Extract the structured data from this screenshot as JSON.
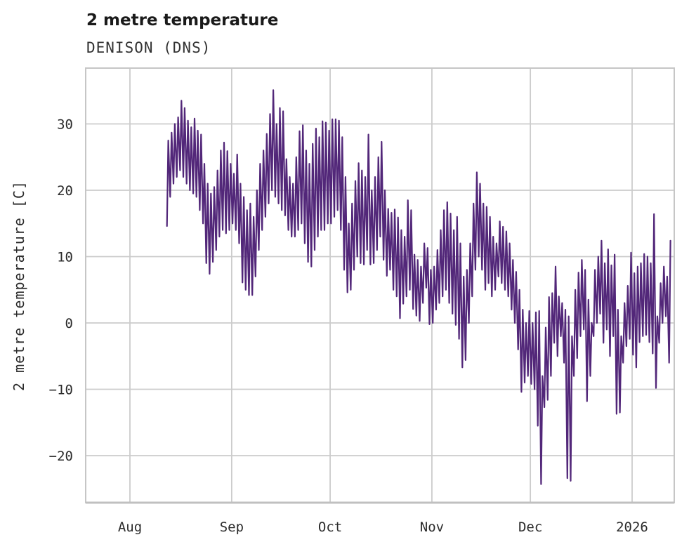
{
  "header": {
    "title": "2 metre temperature",
    "subtitle": "DENISON (DNS)"
  },
  "chart_data": {
    "type": "line",
    "title": "2 metre temperature",
    "subtitle": "DENISON (DNS)",
    "xlabel": "",
    "ylabel": "2 metre temperature [C]",
    "ylim": [
      -27.2,
      38.4
    ],
    "grid": true,
    "legend": "none",
    "line_color": "#522779",
    "grid_color": "#cccccc",
    "background": "#ffffff",
    "y_ticks": [
      {
        "label": "30",
        "value": 30
      },
      {
        "label": "20",
        "value": 20
      },
      {
        "label": "10",
        "value": 10
      },
      {
        "label": "0",
        "value": 0
      },
      {
        "label": "−10",
        "value": -10
      },
      {
        "label": "−20",
        "value": -20
      }
    ],
    "x_ticks": [
      {
        "label": "Aug",
        "day_offset": 0
      },
      {
        "label": "Sep",
        "day_offset": 31
      },
      {
        "label": "Oct",
        "day_offset": 61
      },
      {
        "label": "Nov",
        "day_offset": 92
      },
      {
        "label": "Dec",
        "day_offset": 122
      },
      {
        "label": "2026",
        "day_offset": 153
      }
    ],
    "series": {
      "name": "2 metre temperature at DENISON (DNS)",
      "units": "C",
      "note": "hourly trace read off the plot as a daily min/max envelope; day_offset 0 = Aug 1, data runs Aug 12 to Jan 12",
      "start_day_offset": 11,
      "daily_min": [
        14.6,
        19,
        21,
        22,
        23,
        22,
        21,
        20,
        19.5,
        19,
        17,
        15,
        9,
        7.4,
        9.2,
        11,
        13,
        14,
        13.5,
        14,
        15,
        14,
        12,
        6.1,
        5,
        4.2,
        4.2,
        7,
        11,
        14,
        16,
        18,
        20,
        19,
        18,
        17,
        16.2,
        14,
        13,
        13,
        14,
        15,
        12,
        9.2,
        8.5,
        11,
        13,
        14,
        14,
        15,
        15,
        16,
        17,
        14,
        8,
        4.6,
        5,
        8,
        10,
        9,
        8.8,
        11,
        8.8,
        9,
        11,
        13,
        9.5,
        7.1,
        8,
        5,
        4,
        0.7,
        2.9,
        4,
        5,
        2.1,
        1.1,
        0.3,
        3,
        5.3,
        -0.2,
        0,
        2,
        3,
        4,
        5,
        3,
        1.4,
        -0.3,
        -2.4,
        -6.7,
        -5.6,
        0,
        4,
        8,
        10,
        8,
        5,
        6,
        4,
        5,
        7,
        6,
        5,
        4,
        2,
        0,
        -4,
        -10.4,
        -9,
        -8,
        -9.2,
        -10,
        -15.5,
        -24.3,
        -12.7,
        -11.6,
        -8,
        -3,
        -5,
        -2,
        -6,
        -23.4,
        -23.8,
        -8,
        -5.3,
        -2,
        -1,
        -11.8,
        -8,
        -2,
        0,
        1.4,
        -3,
        -1,
        -5,
        -2,
        -13.7,
        -13.5,
        -6,
        -3.5,
        -2.4,
        -4.8,
        -6.7,
        -2.9,
        -2,
        -1.8,
        -2.9,
        -4.6,
        -9.8,
        -3,
        0,
        1,
        -6
      ],
      "daily_max": [
        27.5,
        28.7,
        30,
        31,
        33.5,
        32.4,
        30.5,
        29.5,
        30.8,
        29,
        28.4,
        24,
        21,
        19.5,
        20.5,
        23,
        26,
        27.2,
        25.9,
        24,
        22.5,
        25.4,
        21,
        19,
        17,
        18,
        16,
        20,
        24,
        26,
        28.5,
        31.5,
        35.1,
        30,
        32.4,
        31.9,
        24.7,
        22,
        21,
        25,
        28.9,
        29.8,
        26,
        24,
        27,
        29.3,
        28,
        30.4,
        30.2,
        29,
        30.7,
        30.7,
        30.5,
        28,
        22,
        15,
        18,
        21.4,
        24.1,
        23,
        22,
        28.4,
        20,
        22,
        25,
        27.3,
        20,
        17.2,
        16.6,
        17.1,
        15.9,
        14,
        13,
        18.5,
        17,
        10.3,
        9.5,
        8.5,
        12,
        11.3,
        8,
        8.5,
        11,
        14,
        17,
        18.2,
        16.5,
        14,
        16,
        12,
        7,
        8,
        12,
        18,
        22.7,
        21,
        18,
        17.5,
        16,
        13,
        12,
        15.3,
        14.5,
        13.8,
        12,
        9.5,
        7.7,
        5,
        2,
        0,
        1.8,
        0,
        1.6,
        1.8,
        -8,
        -0.7,
        3.9,
        4.5,
        8.5,
        4,
        3,
        2,
        1,
        -2,
        5,
        7.6,
        9.5,
        8,
        3.5,
        0,
        8,
        10,
        12.4,
        9,
        11.1,
        8.7,
        10.3,
        2,
        -2,
        3,
        5.6,
        10.6,
        7.5,
        8.5,
        9,
        10.4,
        10,
        9,
        16.4,
        1,
        6,
        8.5,
        7,
        12.4
      ]
    }
  }
}
